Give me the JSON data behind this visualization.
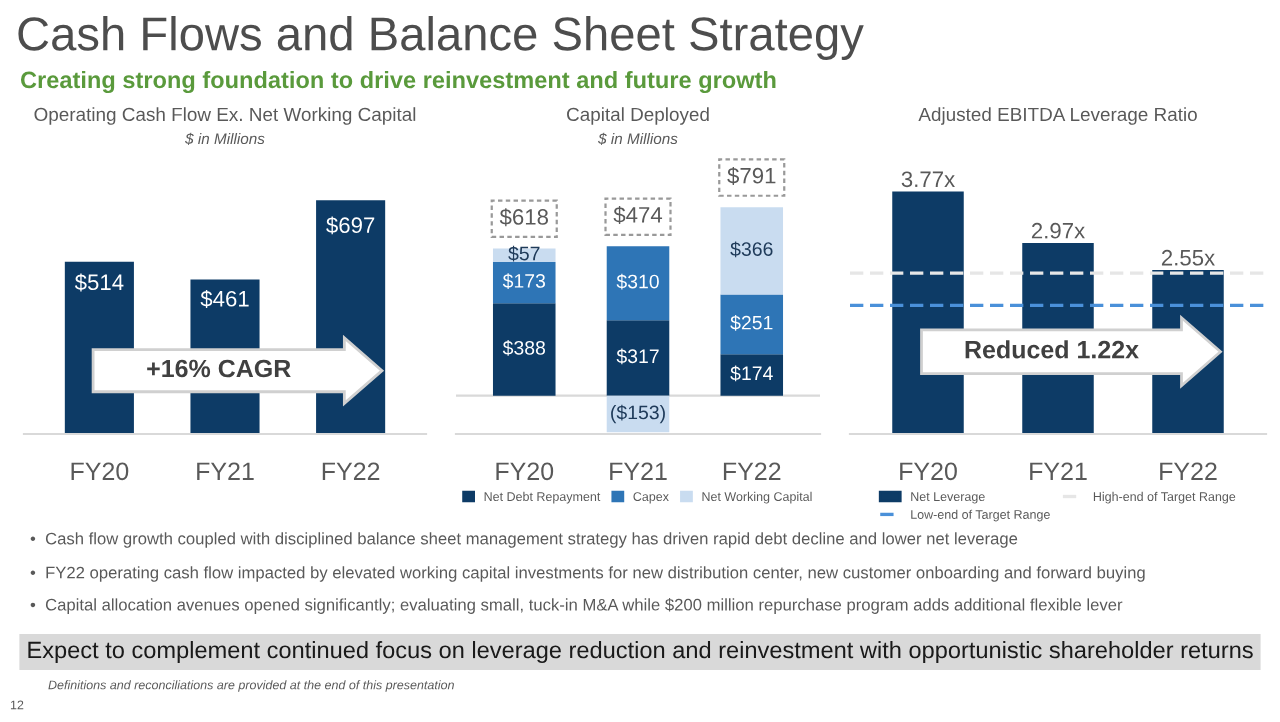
{
  "chart_data": [
    {
      "type": "bar",
      "title": "Operating Cash Flow Ex. Net Working Capital",
      "subtitle": "$ in Millions",
      "categories": [
        "FY20",
        "FY21",
        "FY22"
      ],
      "series": [
        {
          "color": "#0d3b66",
          "values": [
            514,
            461,
            697
          ],
          "value_labels": [
            "$514",
            "$461",
            "$697"
          ]
        }
      ],
      "tick_labels": "x",
      "grid": false,
      "legend": false,
      "annotations": [
        "+16% CAGR"
      ]
    },
    {
      "type": "bar",
      "title": "Capital Deployed",
      "subtitle": "$ in Millions",
      "categories": [
        "FY20",
        "FY21",
        "FY22"
      ],
      "stacked": true,
      "series": [
        {
          "name": "Net Debt Repayment",
          "color": "#0d3b66",
          "values": [
            388,
            317,
            174
          ],
          "value_labels": [
            "$388",
            "$317",
            "$174"
          ]
        },
        {
          "name": "Capex",
          "color": "#2e75b6",
          "values": [
            173,
            310,
            251
          ],
          "value_labels": [
            "$173",
            "$310",
            "$251"
          ]
        },
        {
          "name": "Net Working Capital",
          "color": "#c9dcf0",
          "values": [
            57,
            -153,
            366
          ],
          "value_labels": [
            "$57",
            "($153)",
            "$366"
          ]
        }
      ],
      "totals": [
        "$618",
        "$474",
        "$791"
      ],
      "tick_labels": "x",
      "grid": false,
      "legend": "bottom"
    },
    {
      "type": "bar",
      "title": "Adjusted EBITDA Leverage Ratio",
      "categories": [
        "FY20",
        "FY21",
        "FY22"
      ],
      "series": [
        {
          "name": "Net Leverage",
          "color": "#0d3b66",
          "values": [
            3.77,
            2.97,
            2.55
          ],
          "value_labels": [
            "3.77x",
            "2.97x",
            "2.55x"
          ]
        }
      ],
      "ref_lines": [
        {
          "axis": "y",
          "value": 2.0,
          "label": "Low-end of Target Range",
          "color": "#4a90d9",
          "line_style": "dashed"
        },
        {
          "axis": "y",
          "value": 2.5,
          "label": "High-end of Target Range",
          "color": "#e6e6e6",
          "line_style": "dashed"
        }
      ],
      "tick_labels": "x",
      "grid": false,
      "legend": "bottom",
      "annotations": [
        "Reduced 1.22x"
      ]
    },
    {
      "type": "other",
      "title": "Cash Flows and Balance Sheet Strategy",
      "subtitle": "Creating strong foundation to drive reinvestment and future growth",
      "annotations": [
        "•  Cash flow growth coupled with disciplined balance sheet management strategy has driven rapid debt decline and lower net leverage",
        "•  FY22 operating cash flow impacted by elevated working capital investments for new distribution center, new customer onboarding and forward buying",
        "•  Capital allocation avenues opened significantly; evaluating small, tuck-in M&A while $200 million repurchase program adds additional flexible lever",
        "Expect to complement continued focus on leverage reduction and reinvestment with opportunistic shareholder returns",
        "Definitions and reconciliations are provided at the end of this presentation",
        "12"
      ]
    }
  ]
}
